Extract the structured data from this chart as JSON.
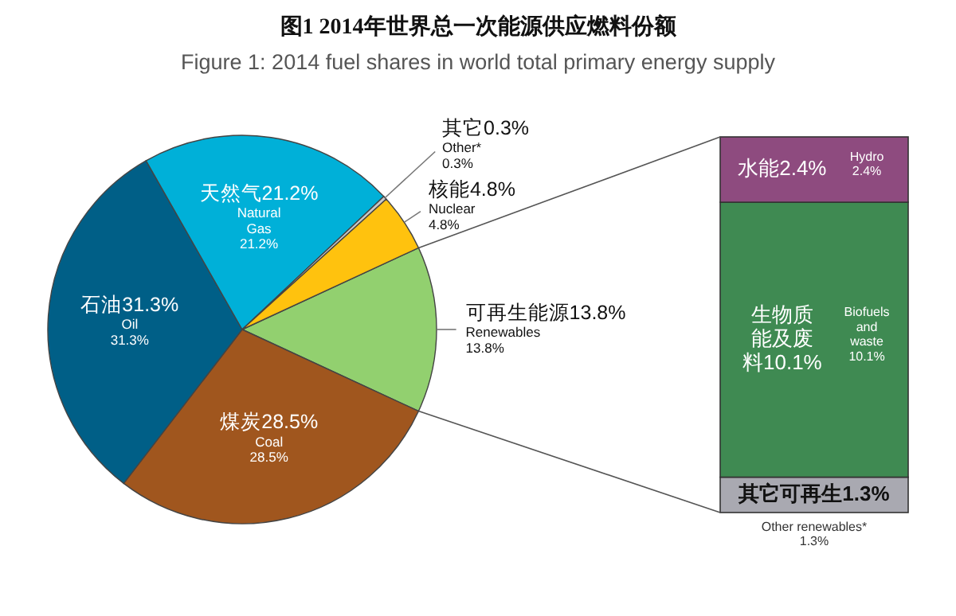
{
  "chart_data": [
    {
      "type": "pie",
      "title": "图1  2014年世界总一次能源供应燃料份额",
      "subtitle": "Figure 1: 2014 fuel shares in world total primary energy supply",
      "categories": [
        "可再生能源",
        "煤炭",
        "石油",
        "天然气",
        "其它",
        "核能"
      ],
      "values": [
        13.8,
        28.5,
        31.3,
        21.2,
        0.3,
        4.8
      ],
      "value_labels": [
        "13.8%",
        "28.5%",
        "31.3%",
        "21.2%",
        "0.3%",
        "4.8%"
      ],
      "colors": [
        "#92d06f",
        "#a0561e",
        "#005f87",
        "#00b0d8",
        "#c8c8c8",
        "#ffc20e"
      ],
      "annotations": [
        "Renewables\n13.8%",
        "Coal\n28.5%",
        "Oil\n31.3%",
        "Natural\nGas\n21.2%",
        "Other*\n0.3%",
        "Nuclear\n4.8%"
      ]
    },
    {
      "type": "bar",
      "stacked": true,
      "categories": [
        null
      ],
      "series": [
        {
          "name": "其它可再生",
          "color": "#a9a9b1",
          "values": [
            1.3
          ],
          "value_labels": [
            "1.3%"
          ]
        },
        {
          "name": "生物质能及废料",
          "color": "#3f8a52",
          "values": [
            10.1
          ],
          "value_labels": [
            "10.1%"
          ]
        },
        {
          "name": "水能",
          "color": "#8e4b7f",
          "values": [
            2.4
          ],
          "value_labels": [
            "2.4%"
          ]
        }
      ],
      "annotations": [
        "Other renewables*\n1.3%",
        "Biofuels\nand\nwaste\n10.1%",
        "Hydro\n2.4%"
      ]
    }
  ]
}
